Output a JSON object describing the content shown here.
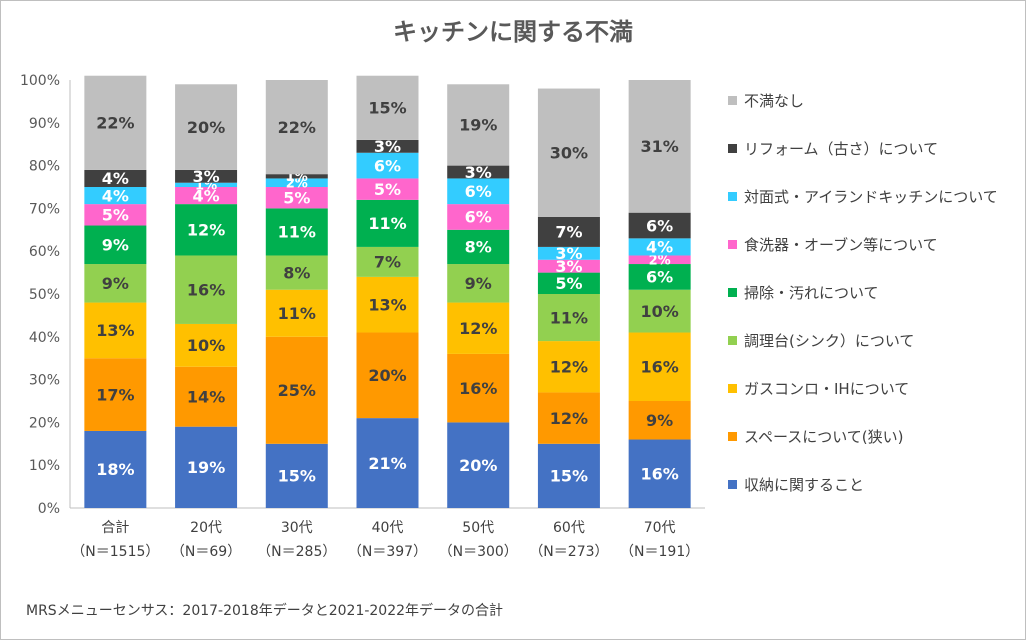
{
  "chart_data": {
    "type": "bar",
    "stacked": true,
    "title": "キッチンに関する不満",
    "categories": [
      "合計",
      "20代",
      "30代",
      "40代",
      "50代",
      "60代",
      "70代"
    ],
    "category_notes": [
      "（N＝1515）",
      "（N＝69）",
      "（N＝285）",
      "（N＝397）",
      "（N＝300）",
      "（N＝273）",
      "（N＝191）"
    ],
    "ylim": [
      0,
      100
    ],
    "yticks": [
      "0%",
      "10%",
      "20%",
      "30%",
      "40%",
      "50%",
      "60%",
      "70%",
      "80%",
      "90%",
      "100%"
    ],
    "grid": false,
    "legend_position": "right",
    "series": [
      {
        "name": "収納に関すること",
        "color": "#4472c4",
        "label_color": "#ffffff",
        "values": [
          18,
          19,
          15,
          21,
          20,
          15,
          16
        ]
      },
      {
        "name": "スペースについて(狭い)",
        "color": "#ff9900",
        "label_color": "#404040",
        "values": [
          17,
          14,
          25,
          20,
          16,
          12,
          9
        ]
      },
      {
        "name": "ガスコンロ・IHについて",
        "color": "#ffc000",
        "label_color": "#404040",
        "values": [
          13,
          10,
          11,
          13,
          12,
          12,
          16
        ]
      },
      {
        "name": "調理台(シンク）について",
        "color": "#92d050",
        "label_color": "#404040",
        "values": [
          9,
          16,
          8,
          7,
          9,
          11,
          10
        ]
      },
      {
        "name": "掃除・汚れについて",
        "color": "#00b050",
        "label_color": "#ffffff",
        "values": [
          9,
          12,
          11,
          11,
          8,
          5,
          6
        ]
      },
      {
        "name": "食洗器・オーブン等について",
        "color": "#ff66cc",
        "label_color": "#ffffff",
        "values": [
          5,
          4,
          5,
          5,
          6,
          3,
          2
        ]
      },
      {
        "name": "対面式・アイランドキッチンについて",
        "color": "#33ccff",
        "label_color": "#ffffff",
        "values": [
          4,
          1,
          2,
          6,
          6,
          3,
          4
        ]
      },
      {
        "name": "リフォーム（古さ）について",
        "color": "#404040",
        "label_color": "#ffffff",
        "values": [
          4,
          3,
          1,
          3,
          3,
          7,
          6
        ]
      },
      {
        "name": "不満なし",
        "color": "#bfbfbf",
        "label_color": "#404040",
        "values": [
          22,
          20,
          22,
          15,
          19,
          30,
          31
        ]
      }
    ]
  },
  "footnote": "MRSメニューセンサス：2017-2018年データと2021-2022年データの合計"
}
